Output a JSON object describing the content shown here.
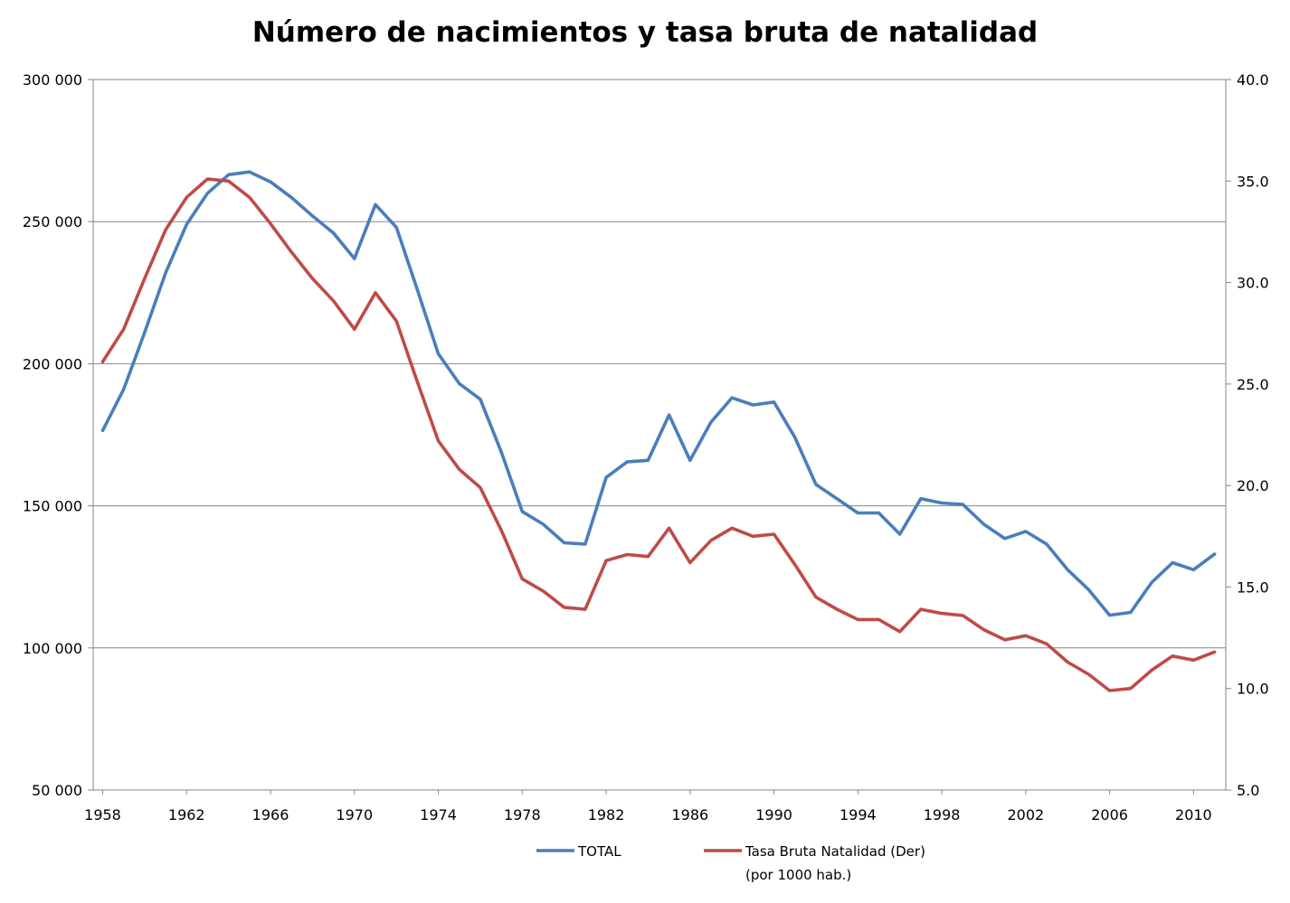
{
  "chart_data": {
    "type": "line",
    "title": "Número de nacimientos y tasa bruta de natalidad",
    "x": [
      1958,
      1959,
      1960,
      1961,
      1962,
      1963,
      1964,
      1965,
      1966,
      1967,
      1968,
      1969,
      1970,
      1971,
      1972,
      1973,
      1974,
      1975,
      1976,
      1977,
      1978,
      1979,
      1980,
      1981,
      1982,
      1983,
      1984,
      1985,
      1986,
      1987,
      1988,
      1989,
      1990,
      1991,
      1992,
      1993,
      1994,
      1995,
      1996,
      1997,
      1998,
      1999,
      2000,
      2001,
      2002,
      2003,
      2004,
      2005,
      2006,
      2007,
      2008,
      2009,
      2010,
      2011
    ],
    "x_ticks": [
      "1958",
      "1962",
      "1966",
      "1970",
      "1974",
      "1978",
      "1982",
      "1986",
      "1990",
      "1994",
      "1998",
      "2002",
      "2006",
      "2010"
    ],
    "y_left": {
      "ticks": [
        "300 000",
        "250 000",
        "200 000",
        "150 000",
        "100 000",
        "50 000"
      ],
      "ylim": [
        50000,
        300000
      ]
    },
    "y_right": {
      "ticks": [
        "40.0",
        "35.0",
        "30.0",
        "25.0",
        "20.0",
        "15.0",
        "10.0",
        "5.0"
      ],
      "ylim": [
        5,
        40
      ]
    },
    "grid": "horizontal",
    "legend_position": "bottom",
    "series": [
      {
        "name": "TOTAL",
        "axis": "left",
        "color": "#4a7ebb",
        "values": [
          176500,
          191000,
          211000,
          232000,
          249000,
          260000,
          266500,
          267500,
          264000,
          258500,
          252000,
          246000,
          237000,
          256000,
          248000,
          226000,
          203500,
          193000,
          187500,
          169000,
          148000,
          143500,
          137000,
          136500,
          160000,
          165500,
          166000,
          182000,
          166000,
          179500,
          188000,
          185500,
          186500,
          174000,
          157500,
          152500,
          147500,
          147500,
          140000,
          152500,
          151000,
          150500,
          143500,
          138500,
          141000,
          136500,
          127500,
          120500,
          111500,
          112500,
          123000,
          130000,
          127500,
          133000
        ],
        "legend_label": "TOTAL"
      },
      {
        "name": "Tasa Bruta Natalidad (Der)",
        "axis": "right",
        "color": "#be4b48",
        "values": [
          26.1,
          27.7,
          30.2,
          32.6,
          34.2,
          35.1,
          35.0,
          34.2,
          32.9,
          31.5,
          30.2,
          29.1,
          27.7,
          29.5,
          28.1,
          25.1,
          22.2,
          20.8,
          19.9,
          17.8,
          15.4,
          14.8,
          14.0,
          13.9,
          16.3,
          16.6,
          16.5,
          17.9,
          16.2,
          17.3,
          17.9,
          17.5,
          17.6,
          16.1,
          14.5,
          13.9,
          13.4,
          13.4,
          12.8,
          13.9,
          13.7,
          13.6,
          12.9,
          12.4,
          12.6,
          12.2,
          11.3,
          10.7,
          9.9,
          10.0,
          10.9,
          11.6,
          11.4,
          11.8
        ],
        "legend_label": "Tasa Bruta Natalidad (Der)",
        "legend_sublabel": "(por 1000 hab.)"
      }
    ]
  }
}
